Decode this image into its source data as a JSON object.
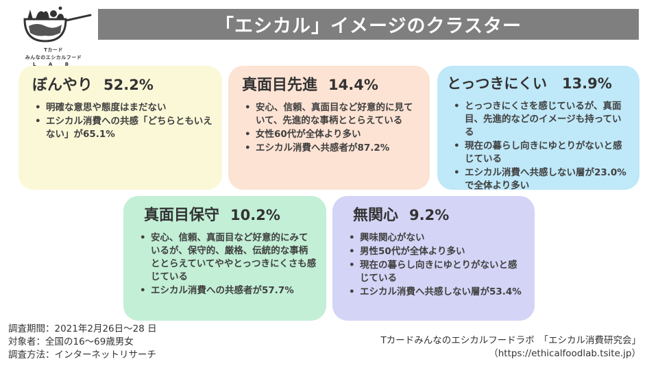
{
  "logo": {
    "line1": "Tカード",
    "line2": "みんなのエシカルフード",
    "line3": "L A B"
  },
  "title": "「エシカル」イメージのクラスター",
  "clusters": [
    {
      "name": "ぼんやり",
      "percent": "52.2%",
      "color": "#fbf8d8",
      "points": [
        "明確な意思や態度はまだない",
        "エシカル消費への共感「どちらともいえない」が65.1%"
      ]
    },
    {
      "name": "真面目先進",
      "percent": "14.4%",
      "color": "#fde3d4",
      "points": [
        "安心、信頼、真面目など好意的に見ていて、先進的な事柄ととらえている",
        "女性60代が全体より多い",
        "エシカル消費へ共感者が87.2%"
      ]
    },
    {
      "name": "とっつきにくい",
      "percent": "13.9%",
      "color": "#bfe8f8",
      "points": [
        "とっつきにくさを感じているが、真面目、先進的などのイメージも持っている",
        "現在の暮らし向きにゆとりがないと感じている",
        "エシカル消費へ共感しない層が23.0%で全体より多い"
      ]
    },
    {
      "name": "真面目保守",
      "percent": "10.2%",
      "color": "#c2efd6",
      "points": [
        "安心、信頼、真面目など好意的にみているが、保守的、厳格、伝統的な事柄ととらえていてややとっつきにくさも感じている",
        "エシカル消費への共感者が57.7%"
      ]
    },
    {
      "name": "無関心",
      "percent": "9.2%",
      "color": "#d4d4f6",
      "points": [
        "興味関心がない",
        "男性50代が全体より多い",
        "現在の暮らし向きにゆとりがないと感じている",
        "エシカル消費へ共感しない層が53.4%"
      ]
    }
  ],
  "survey": {
    "period": "調査期間：2021年2月26日～28 日",
    "target": "対象者：全国の16～69歳男女",
    "method": "調査方法：インターネットリサーチ"
  },
  "credit": {
    "org": "Tカードみんなのエシカルフードラボ　「エシカル消費研究会」",
    "url": "（https://ethicalfoodlab.tsite.jp）"
  }
}
